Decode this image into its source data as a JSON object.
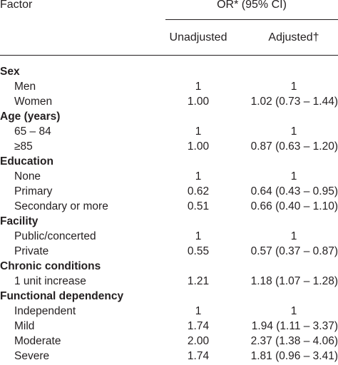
{
  "header": {
    "factor": "Factor",
    "or": "OR* (95% CI)",
    "unadjusted": "Unadjusted",
    "adjusted": "Adjusted†"
  },
  "rows": [
    {
      "kind": "section",
      "label": "Sex"
    },
    {
      "kind": "item",
      "label": "Men",
      "unadjusted": "1",
      "adjusted": "1",
      "ref": true
    },
    {
      "kind": "item",
      "label": "Women",
      "unadjusted": "1.00",
      "adjusted": "1.02 (0.73 – 1.44)"
    },
    {
      "kind": "section",
      "label": "Age (years)"
    },
    {
      "kind": "item",
      "label": "65 – 84",
      "unadjusted": "1",
      "adjusted": "1",
      "ref": true
    },
    {
      "kind": "item",
      "label": "≥85",
      "unadjusted": "1.00",
      "adjusted": "0.87 (0.63 – 1.20)"
    },
    {
      "kind": "section",
      "label": "Education"
    },
    {
      "kind": "item",
      "label": "None",
      "unadjusted": "1",
      "adjusted": "1",
      "ref": true
    },
    {
      "kind": "item",
      "label": "Primary",
      "unadjusted": "0.62",
      "adjusted": "0.64 (0.43 – 0.95)"
    },
    {
      "kind": "item",
      "label": "Secondary or more",
      "unadjusted": "0.51",
      "adjusted": "0.66 (0.40 – 1.10)"
    },
    {
      "kind": "section",
      "label": "Facility"
    },
    {
      "kind": "item",
      "label": "Public/concerted",
      "unadjusted": "1",
      "adjusted": "1",
      "ref": true
    },
    {
      "kind": "item",
      "label": "Private",
      "unadjusted": "0.55",
      "adjusted": "0.57 (0.37 – 0.87)"
    },
    {
      "kind": "section",
      "label": "Chronic conditions"
    },
    {
      "kind": "item",
      "label": "1 unit increase",
      "unadjusted": "1.21",
      "adjusted": "1.18 (1.07 – 1.28)"
    },
    {
      "kind": "section",
      "label": "Functional dependency"
    },
    {
      "kind": "item",
      "label": "Independent",
      "unadjusted": "1",
      "adjusted": "1",
      "ref": true
    },
    {
      "kind": "item",
      "label": "Mild",
      "unadjusted": "1.74",
      "adjusted": "1.94 (1.11 – 3.37)"
    },
    {
      "kind": "item",
      "label": "Moderate",
      "unadjusted": "2.00",
      "adjusted": "2.37 (1.38 – 4.06)"
    },
    {
      "kind": "item",
      "label": "Severe",
      "unadjusted": "1.74",
      "adjusted": "1.81 (0.96 – 3.41)"
    }
  ]
}
